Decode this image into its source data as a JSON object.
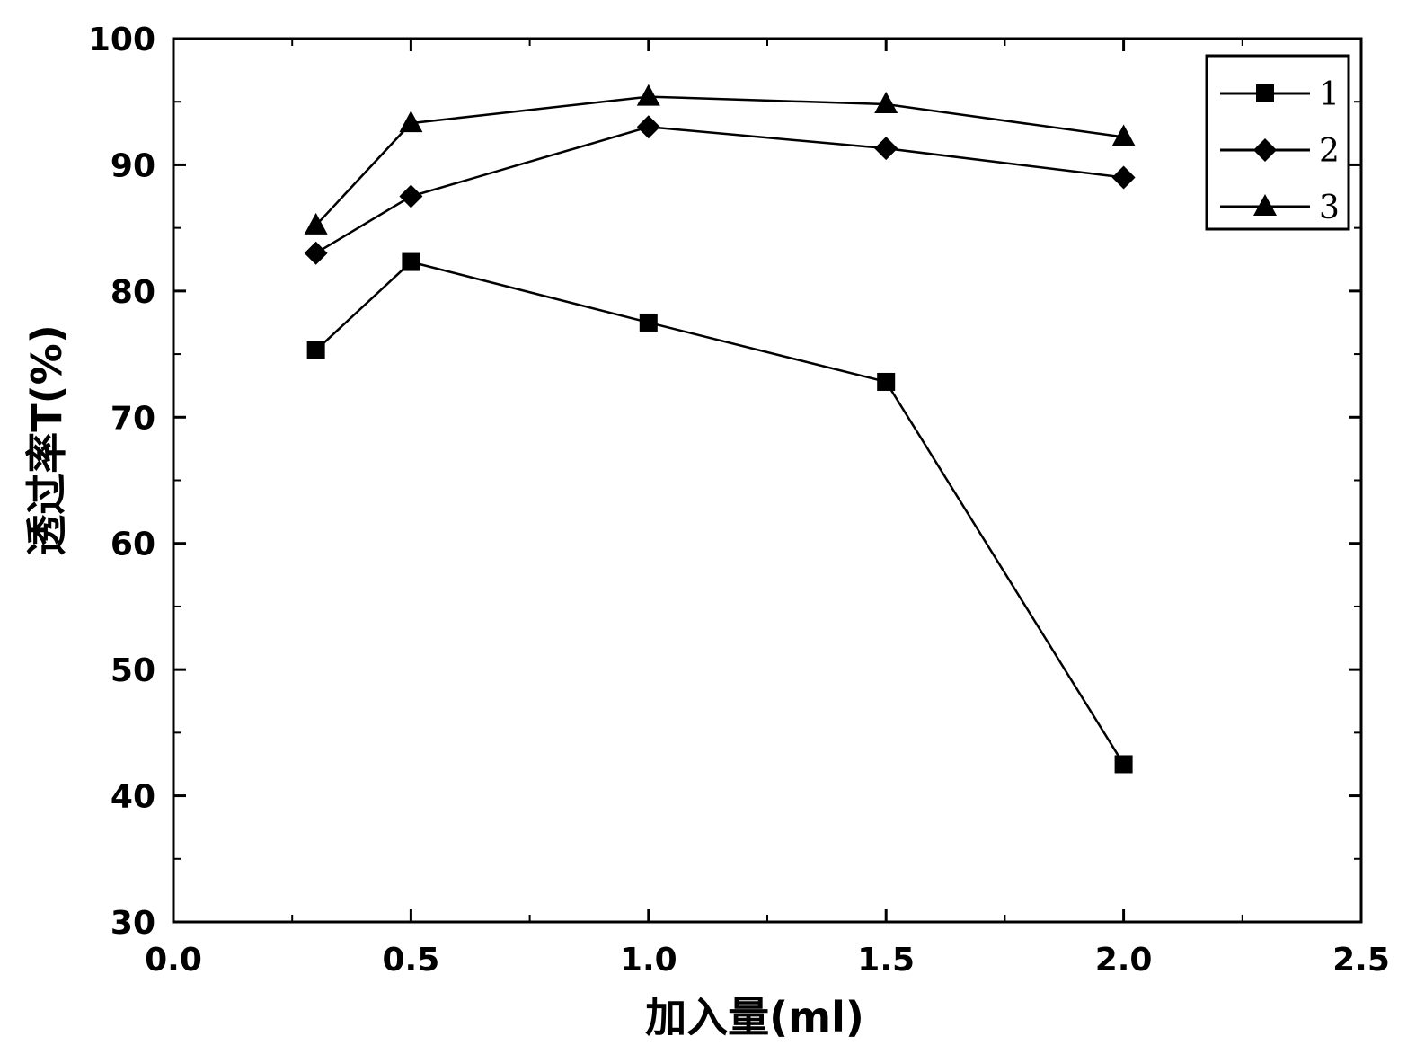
{
  "chart_data": {
    "type": "line",
    "title": "",
    "xlabel": "加入量(ml)",
    "ylabel": "透过率T(%)",
    "xlim": [
      0.0,
      2.5
    ],
    "ylim": [
      30,
      100
    ],
    "x_ticks": [
      "0.0",
      "0.5",
      "1.0",
      "1.5",
      "2.0",
      "2.5"
    ],
    "y_ticks": [
      "30",
      "40",
      "50",
      "60",
      "70",
      "80",
      "90",
      "100"
    ],
    "grid": false,
    "legend_position": "top-right",
    "x": [
      0.3,
      0.5,
      1.0,
      1.5,
      2.0
    ],
    "series": [
      {
        "name": "1",
        "marker": "square",
        "values": [
          75.3,
          82.3,
          77.5,
          72.8,
          42.5
        ]
      },
      {
        "name": "2",
        "marker": "diamond",
        "values": [
          83.0,
          87.5,
          93.0,
          91.3,
          89.0
        ]
      },
      {
        "name": "3",
        "marker": "triangle",
        "values": [
          85.2,
          93.3,
          95.4,
          94.8,
          92.2
        ]
      }
    ]
  }
}
